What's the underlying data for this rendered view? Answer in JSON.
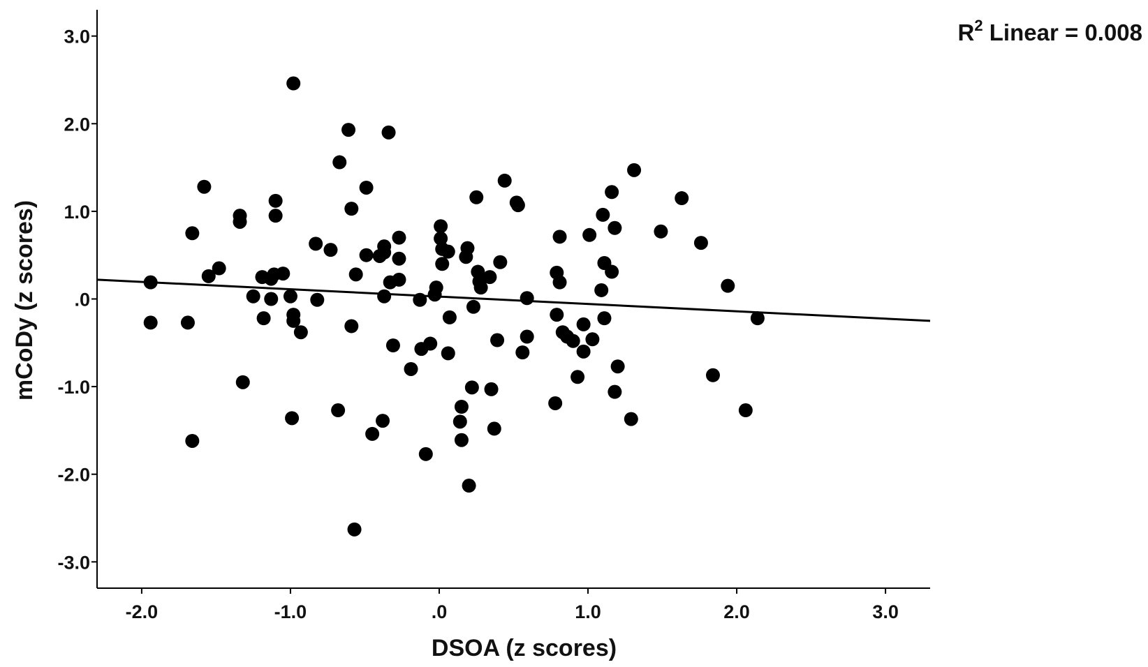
{
  "chart_data": {
    "type": "scatter",
    "title": "",
    "xlabel": "DSOA (z scores)",
    "ylabel": "mCoDy (z scores)",
    "xlim": [
      -2.3,
      3.3
    ],
    "ylim": [
      -3.3,
      3.3
    ],
    "x_ticks": [
      -2.0,
      -1.0,
      0.0,
      1.0,
      2.0,
      3.0
    ],
    "x_tick_labels": [
      "-2.0",
      "-1.0",
      ".0",
      "1.0",
      "2.0",
      "3.0"
    ],
    "y_ticks": [
      3.0,
      2.0,
      1.0,
      0.0,
      -1.0,
      -2.0,
      -3.0
    ],
    "y_tick_labels": [
      "3.0",
      "2.0",
      "1.0",
      ".0",
      "-1.0",
      "-2.0",
      "-3.0"
    ],
    "grid": false,
    "legend": "none",
    "marker_color": "#000000",
    "fit_line": {
      "label_base": "R",
      "label_sup": "2",
      "label_rest": " Linear = 0.008",
      "x": [
        -2.3,
        3.3
      ],
      "y": [
        0.22,
        -0.25
      ],
      "color": "#000000"
    },
    "points": [
      {
        "x": -0.98,
        "y": 2.46
      },
      {
        "x": -0.61,
        "y": 1.93
      },
      {
        "x": -0.34,
        "y": 1.9
      },
      {
        "x": -0.67,
        "y": 1.56
      },
      {
        "x": 1.31,
        "y": 1.47
      },
      {
        "x": 0.44,
        "y": 1.35
      },
      {
        "x": -1.58,
        "y": 1.28
      },
      {
        "x": -0.49,
        "y": 1.27
      },
      {
        "x": 1.16,
        "y": 1.22
      },
      {
        "x": 0.25,
        "y": 1.16
      },
      {
        "x": 1.63,
        "y": 1.15
      },
      {
        "x": -1.1,
        "y": 1.12
      },
      {
        "x": 0.52,
        "y": 1.1
      },
      {
        "x": 0.53,
        "y": 1.07
      },
      {
        "x": -0.59,
        "y": 1.03
      },
      {
        "x": -1.34,
        "y": 0.95
      },
      {
        "x": -1.1,
        "y": 0.95
      },
      {
        "x": 1.1,
        "y": 0.96
      },
      {
        "x": -1.34,
        "y": 0.88
      },
      {
        "x": 0.01,
        "y": 0.83
      },
      {
        "x": 1.18,
        "y": 0.81
      },
      {
        "x": 1.49,
        "y": 0.77
      },
      {
        "x": -1.66,
        "y": 0.75
      },
      {
        "x": 1.01,
        "y": 0.73
      },
      {
        "x": 0.81,
        "y": 0.71
      },
      {
        "x": -0.27,
        "y": 0.7
      },
      {
        "x": 0.01,
        "y": 0.69
      },
      {
        "x": 1.76,
        "y": 0.64
      },
      {
        "x": -0.83,
        "y": 0.63
      },
      {
        "x": -0.37,
        "y": 0.6
      },
      {
        "x": 0.19,
        "y": 0.58
      },
      {
        "x": 0.02,
        "y": 0.57
      },
      {
        "x": -0.73,
        "y": 0.56
      },
      {
        "x": 0.06,
        "y": 0.54
      },
      {
        "x": -0.37,
        "y": 0.53
      },
      {
        "x": -0.49,
        "y": 0.5
      },
      {
        "x": -0.4,
        "y": 0.49
      },
      {
        "x": 0.18,
        "y": 0.48
      },
      {
        "x": -0.27,
        "y": 0.46
      },
      {
        "x": 0.41,
        "y": 0.42
      },
      {
        "x": 1.11,
        "y": 0.41
      },
      {
        "x": 0.02,
        "y": 0.4
      },
      {
        "x": -1.48,
        "y": 0.35
      },
      {
        "x": 0.26,
        "y": 0.31
      },
      {
        "x": 1.16,
        "y": 0.31
      },
      {
        "x": 0.79,
        "y": 0.3
      },
      {
        "x": -1.05,
        "y": 0.29
      },
      {
        "x": -1.11,
        "y": 0.28
      },
      {
        "x": -0.56,
        "y": 0.28
      },
      {
        "x": -1.55,
        "y": 0.26
      },
      {
        "x": -1.19,
        "y": 0.25
      },
      {
        "x": 0.34,
        "y": 0.25
      },
      {
        "x": -1.13,
        "y": 0.23
      },
      {
        "x": -0.27,
        "y": 0.22
      },
      {
        "x": 0.27,
        "y": 0.2
      },
      {
        "x": -1.94,
        "y": 0.19
      },
      {
        "x": -0.33,
        "y": 0.19
      },
      {
        "x": 0.81,
        "y": 0.19
      },
      {
        "x": 1.94,
        "y": 0.15
      },
      {
        "x": -0.02,
        "y": 0.13
      },
      {
        "x": 0.28,
        "y": 0.13
      },
      {
        "x": 1.09,
        "y": 0.1
      },
      {
        "x": -0.03,
        "y": 0.05
      },
      {
        "x": -1.25,
        "y": 0.03
      },
      {
        "x": -1.0,
        "y": 0.03
      },
      {
        "x": -0.37,
        "y": 0.03
      },
      {
        "x": 0.59,
        "y": 0.01
      },
      {
        "x": -1.13,
        "y": 0.0
      },
      {
        "x": -0.82,
        "y": -0.01
      },
      {
        "x": -0.13,
        "y": -0.01
      },
      {
        "x": 0.23,
        "y": -0.09
      },
      {
        "x": 0.79,
        "y": -0.18
      },
      {
        "x": -0.98,
        "y": -0.18
      },
      {
        "x": 0.07,
        "y": -0.21
      },
      {
        "x": 2.14,
        "y": -0.22
      },
      {
        "x": -1.18,
        "y": -0.22
      },
      {
        "x": 1.11,
        "y": -0.22
      },
      {
        "x": -0.98,
        "y": -0.25
      },
      {
        "x": -1.94,
        "y": -0.27
      },
      {
        "x": -1.69,
        "y": -0.27
      },
      {
        "x": 0.97,
        "y": -0.29
      },
      {
        "x": -0.59,
        "y": -0.31
      },
      {
        "x": -0.93,
        "y": -0.38
      },
      {
        "x": 0.83,
        "y": -0.38
      },
      {
        "x": 0.86,
        "y": -0.43
      },
      {
        "x": 0.59,
        "y": -0.43
      },
      {
        "x": 1.03,
        "y": -0.46
      },
      {
        "x": 0.9,
        "y": -0.48
      },
      {
        "x": 0.39,
        "y": -0.47
      },
      {
        "x": -0.06,
        "y": -0.51
      },
      {
        "x": -0.31,
        "y": -0.53
      },
      {
        "x": -0.12,
        "y": -0.57
      },
      {
        "x": 0.97,
        "y": -0.6
      },
      {
        "x": 0.56,
        "y": -0.61
      },
      {
        "x": 0.06,
        "y": -0.62
      },
      {
        "x": 1.2,
        "y": -0.77
      },
      {
        "x": -0.19,
        "y": -0.8
      },
      {
        "x": 1.84,
        "y": -0.87
      },
      {
        "x": 0.93,
        "y": -0.89
      },
      {
        "x": -1.32,
        "y": -0.95
      },
      {
        "x": 0.22,
        "y": -1.01
      },
      {
        "x": 0.35,
        "y": -1.03
      },
      {
        "x": 1.18,
        "y": -1.06
      },
      {
        "x": 0.78,
        "y": -1.19
      },
      {
        "x": 0.15,
        "y": -1.23
      },
      {
        "x": -0.68,
        "y": -1.27
      },
      {
        "x": 2.06,
        "y": -1.27
      },
      {
        "x": -0.99,
        "y": -1.36
      },
      {
        "x": 1.29,
        "y": -1.37
      },
      {
        "x": -0.38,
        "y": -1.39
      },
      {
        "x": 0.14,
        "y": -1.4
      },
      {
        "x": 0.37,
        "y": -1.48
      },
      {
        "x": -0.45,
        "y": -1.54
      },
      {
        "x": 0.15,
        "y": -1.61
      },
      {
        "x": -1.66,
        "y": -1.62
      },
      {
        "x": -0.09,
        "y": -1.77
      },
      {
        "x": 0.2,
        "y": -2.13
      },
      {
        "x": -0.57,
        "y": -2.63
      }
    ]
  }
}
